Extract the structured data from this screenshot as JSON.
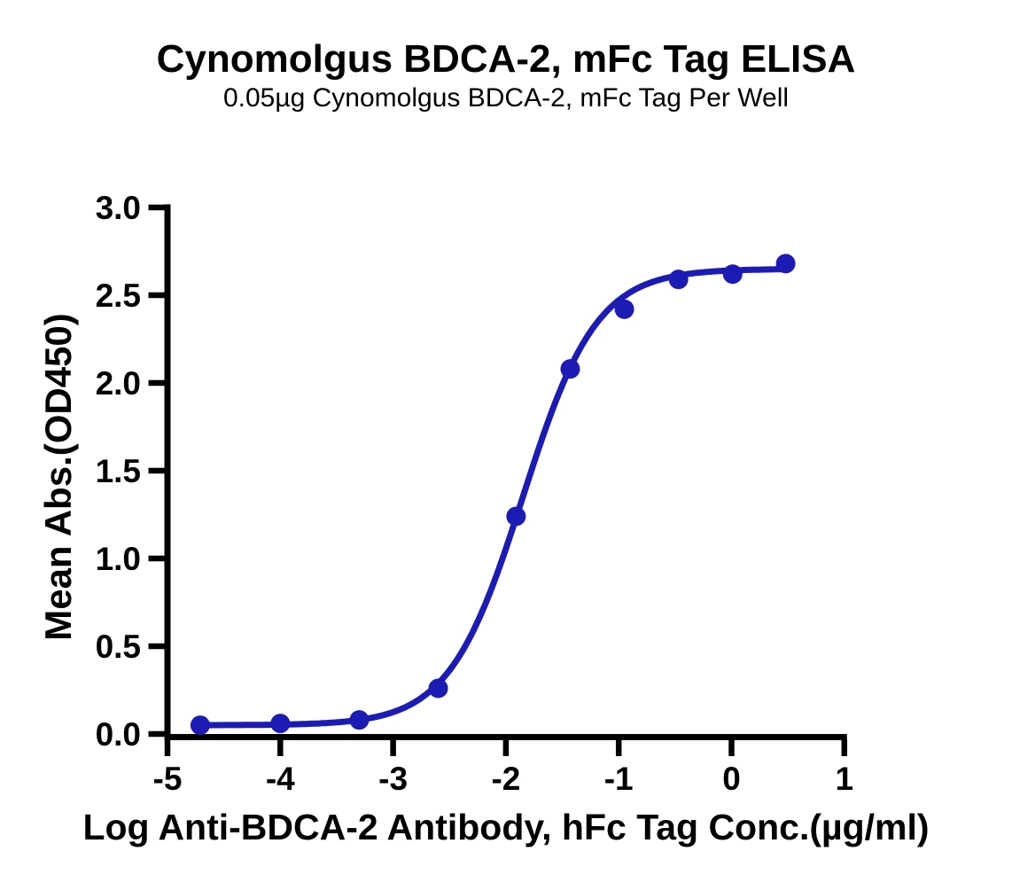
{
  "chart_data": {
    "type": "scatter",
    "title": "Cynomolgus BDCA-2, mFc Tag ELISA",
    "subtitle": "0.05µg Cynomolgus BDCA-2, mFc Tag Per Well",
    "xlabel": "Log Anti-BDCA-2 Antibody, hFc Tag Conc.(µg/ml)",
    "ylabel": "Mean Abs.(OD450)",
    "xlim": [
      -5,
      1
    ],
    "ylim": [
      0,
      3
    ],
    "x_tick_values": [
      -5,
      -4,
      -3,
      -2,
      -1,
      0,
      1
    ],
    "x_tick_labels": [
      "-5",
      "-4",
      "-3",
      "-2",
      "-1",
      "0",
      "1"
    ],
    "y_tick_values": [
      0,
      0.5,
      1,
      1.5,
      2,
      2.5,
      3
    ],
    "y_tick_labels": [
      "0.0",
      "0.5",
      "1.0",
      "1.5",
      "2.0",
      "2.5",
      "3.0"
    ],
    "grid": false,
    "legend": "none",
    "axis_color": "#000000",
    "background_color": "#FFFFFF",
    "series": [
      {
        "color": "#1C1CB4",
        "marker": "circle",
        "points": {
          "log_x": [
            -4.71,
            -4.0,
            -3.3,
            -2.6,
            -1.91,
            -1.43,
            -0.95,
            -0.47,
            0.01,
            0.48
          ],
          "od450": [
            0.05,
            0.06,
            0.08,
            0.26,
            1.24,
            2.08,
            2.42,
            2.59,
            2.62,
            2.68
          ]
        },
        "fit_curve": {
          "model": "4PL",
          "bottom": 0.05,
          "top": 2.65,
          "log_ec50": -1.85,
          "hill_slope": 1.33
        }
      }
    ]
  }
}
